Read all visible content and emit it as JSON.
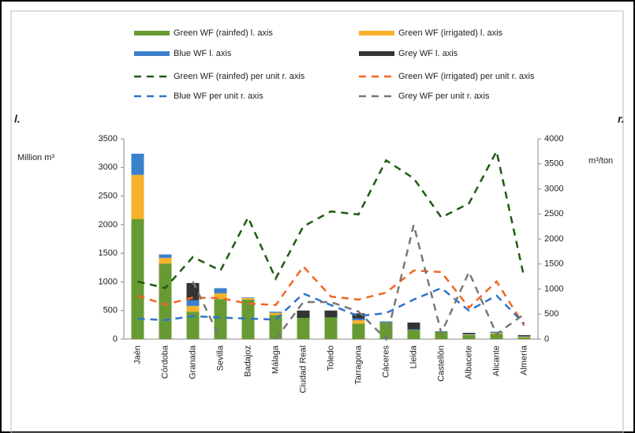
{
  "chart_data": {
    "type": "bar",
    "y_label_tag": "l.",
    "y_label": "Million m³",
    "y2_label_tag": "r.",
    "y2_label": "m³/ton",
    "categories": [
      "Jaén",
      "Córdoba",
      "Granada",
      "Sevilla",
      "Badajoz",
      "Málaga",
      "Ciudad Real",
      "Toledo",
      "Tarragona",
      "Cáceres",
      "Lleida",
      "Castellón",
      "Albacete",
      "Alicante",
      "Almería"
    ],
    "ylim": [
      0,
      3500
    ],
    "yticks": [
      0,
      500,
      1000,
      1500,
      2000,
      2500,
      3000,
      3500
    ],
    "y2lim": [
      0,
      4000
    ],
    "y2ticks": [
      0,
      500,
      1000,
      1500,
      2000,
      2500,
      3000,
      3500,
      4000
    ],
    "series": [
      {
        "name": "Green WF (rainfed)  l. axis",
        "type": "bar",
        "color": "#689a33",
        "values": [
          2100,
          1320,
          480,
          700,
          690,
          420,
          370,
          380,
          270,
          290,
          160,
          130,
          70,
          90,
          30
        ]
      },
      {
        "name": "Green WF (irrigated)  l. axis",
        "type": "bar",
        "color": "#f7b22a",
        "values": [
          770,
          100,
          100,
          100,
          30,
          40,
          0,
          0,
          60,
          0,
          0,
          0,
          10,
          20,
          10
        ]
      },
      {
        "name": "Blue WF  l. axis",
        "type": "bar",
        "color": "#3b80cc",
        "values": [
          370,
          60,
          100,
          90,
          10,
          20,
          0,
          0,
          30,
          20,
          10,
          10,
          10,
          20,
          10
        ]
      },
      {
        "name": "Grey WF  l. axis",
        "type": "bar",
        "color": "#333333",
        "values": [
          0,
          0,
          300,
          0,
          0,
          0,
          130,
          120,
          90,
          0,
          120,
          0,
          20,
          0,
          20
        ]
      },
      {
        "name": "Green WF (rainfed) per unit  r. axis",
        "type": "line",
        "axis": "y2",
        "color": "#1f5a12",
        "values": [
          1150,
          1020,
          1640,
          1370,
          2430,
          1210,
          2250,
          2550,
          2490,
          3570,
          3210,
          2430,
          2710,
          3750,
          1230
        ]
      },
      {
        "name": "Green WF (irrigated) per unit  r. axis",
        "type": "line",
        "axis": "y2",
        "color": "#f26522",
        "values": [
          870,
          690,
          830,
          820,
          710,
          680,
          1450,
          850,
          790,
          930,
          1370,
          1340,
          630,
          1150,
          270
        ]
      },
      {
        "name": "Blue WF per unit  r. axis",
        "type": "line",
        "axis": "y2",
        "color": "#2f74c8",
        "values": [
          410,
          380,
          460,
          430,
          410,
          390,
          910,
          680,
          460,
          520,
          790,
          1020,
          570,
          870,
          310
        ]
      },
      {
        "name": "Grey WF per unit  r. axis",
        "type": "line",
        "axis": "y2",
        "color": "#777777",
        "values": [
          null,
          null,
          1150,
          0,
          null,
          0,
          740,
          740,
          550,
          0,
          2280,
          120,
          1340,
          100,
          500
        ]
      }
    ]
  }
}
